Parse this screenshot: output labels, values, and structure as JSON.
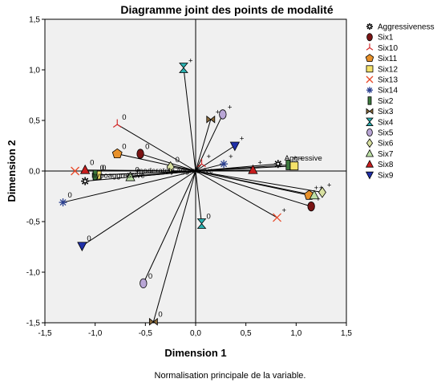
{
  "chart_data": {
    "type": "scatter",
    "title": "Diagramme joint des points de modalité",
    "xlabel": "Dimension 1",
    "ylabel": "Dimension 2",
    "xlim": [
      -1.5,
      1.5
    ],
    "ylim": [
      -1.5,
      1.5
    ],
    "xticks": [
      "-1,5",
      "-1,0",
      "-0,5",
      "0,0",
      "0,5",
      "1,0",
      "1,5"
    ],
    "yticks": [
      "1,5",
      "1,0",
      "0,5",
      "0,0",
      "-0,5",
      "-1,0",
      "-1,5"
    ],
    "grid": false,
    "legend_position": "right",
    "footnote": "Normalisation principale de la variable.",
    "categories": [
      {
        "name": "Aggressiveness",
        "marker": "asterisk",
        "color": "#000000",
        "points": [
          {
            "x": -1.1,
            "y": -0.1,
            "label": "hypoaggressive"
          },
          {
            "x": -0.65,
            "y": -0.05,
            "label": "moderately aggressive"
          },
          {
            "x": 0.82,
            "y": 0.07,
            "label": "Aggressive"
          }
        ]
      },
      {
        "name": "Six1",
        "marker": "oval",
        "color": "#7a1414",
        "points": [
          {
            "x": -0.55,
            "y": 0.17,
            "label": "0"
          },
          {
            "x": 1.15,
            "y": -0.35,
            "label": "+"
          }
        ]
      },
      {
        "name": "Six10",
        "marker": "tri-spoke",
        "color": "#d42a2a",
        "points": [
          {
            "x": -0.78,
            "y": 0.46,
            "label": "0"
          },
          {
            "x": 0.06,
            "y": 0.07,
            "label": "+"
          }
        ]
      },
      {
        "name": "Six11",
        "marker": "pentagon",
        "color": "#e8912a",
        "points": [
          {
            "x": -0.78,
            "y": 0.17,
            "label": "0"
          },
          {
            "x": 1.13,
            "y": -0.24,
            "label": "+"
          }
        ]
      },
      {
        "name": "Six12",
        "marker": "square",
        "color": "#f5e26a",
        "points": [
          {
            "x": -0.98,
            "y": -0.04,
            "label": "0"
          },
          {
            "x": 0.98,
            "y": 0.05,
            "label": "+"
          }
        ]
      },
      {
        "name": "Six13",
        "marker": "x",
        "color": "#e84a2a",
        "points": [
          {
            "x": 0.81,
            "y": -0.46,
            "label": "+"
          },
          {
            "x": -1.2,
            "y": 0.0,
            "label": ""
          }
        ]
      },
      {
        "name": "Six14",
        "marker": "star",
        "color": "#2a3f8f",
        "points": [
          {
            "x": -1.32,
            "y": -0.31,
            "label": "0"
          },
          {
            "x": 0.28,
            "y": 0.07,
            "label": "+"
          }
        ]
      },
      {
        "name": "Six2",
        "marker": "bar",
        "color": "#3e7a3e",
        "points": [
          {
            "x": -1.0,
            "y": -0.04,
            "label": "0"
          },
          {
            "x": 0.92,
            "y": 0.06,
            "label": "+"
          }
        ]
      },
      {
        "name": "Six3",
        "marker": "bowtie",
        "color": "#8a6a3a",
        "points": [
          {
            "x": -0.42,
            "y": -1.49,
            "label": "0"
          },
          {
            "x": 0.15,
            "y": 0.51,
            "label": "+"
          }
        ]
      },
      {
        "name": "Six4",
        "marker": "hourglass",
        "color": "#2ab0b0",
        "points": [
          {
            "x": -0.12,
            "y": 1.02,
            "label": "+"
          },
          {
            "x": 0.06,
            "y": -0.52,
            "label": "0"
          }
        ]
      },
      {
        "name": "Six5",
        "marker": "oval",
        "color": "#b9a6d6",
        "points": [
          {
            "x": -0.52,
            "y": -1.11,
            "label": "0"
          },
          {
            "x": 0.27,
            "y": 0.56,
            "label": "+"
          }
        ]
      },
      {
        "name": "Six6",
        "marker": "diamond",
        "color": "#d8e0a0",
        "points": [
          {
            "x": -0.25,
            "y": 0.04,
            "label": "0"
          },
          {
            "x": 1.26,
            "y": -0.21,
            "label": "+"
          }
        ]
      },
      {
        "name": "Six7",
        "marker": "triangle-open",
        "color": "#bde0a6",
        "points": [
          {
            "x": -0.65,
            "y": -0.06,
            "label": "0"
          },
          {
            "x": 1.18,
            "y": -0.24,
            "label": "+"
          }
        ]
      },
      {
        "name": "Six8",
        "marker": "triangle",
        "color": "#c81e1e",
        "points": [
          {
            "x": -1.1,
            "y": 0.01,
            "label": "0"
          },
          {
            "x": 0.57,
            "y": 0.01,
            "label": "+"
          }
        ]
      },
      {
        "name": "Six9",
        "marker": "triangle-down",
        "color": "#1f2fa8",
        "points": [
          {
            "x": -1.13,
            "y": -0.74,
            "label": "0"
          },
          {
            "x": 0.39,
            "y": 0.25,
            "label": "+"
          }
        ]
      }
    ]
  }
}
